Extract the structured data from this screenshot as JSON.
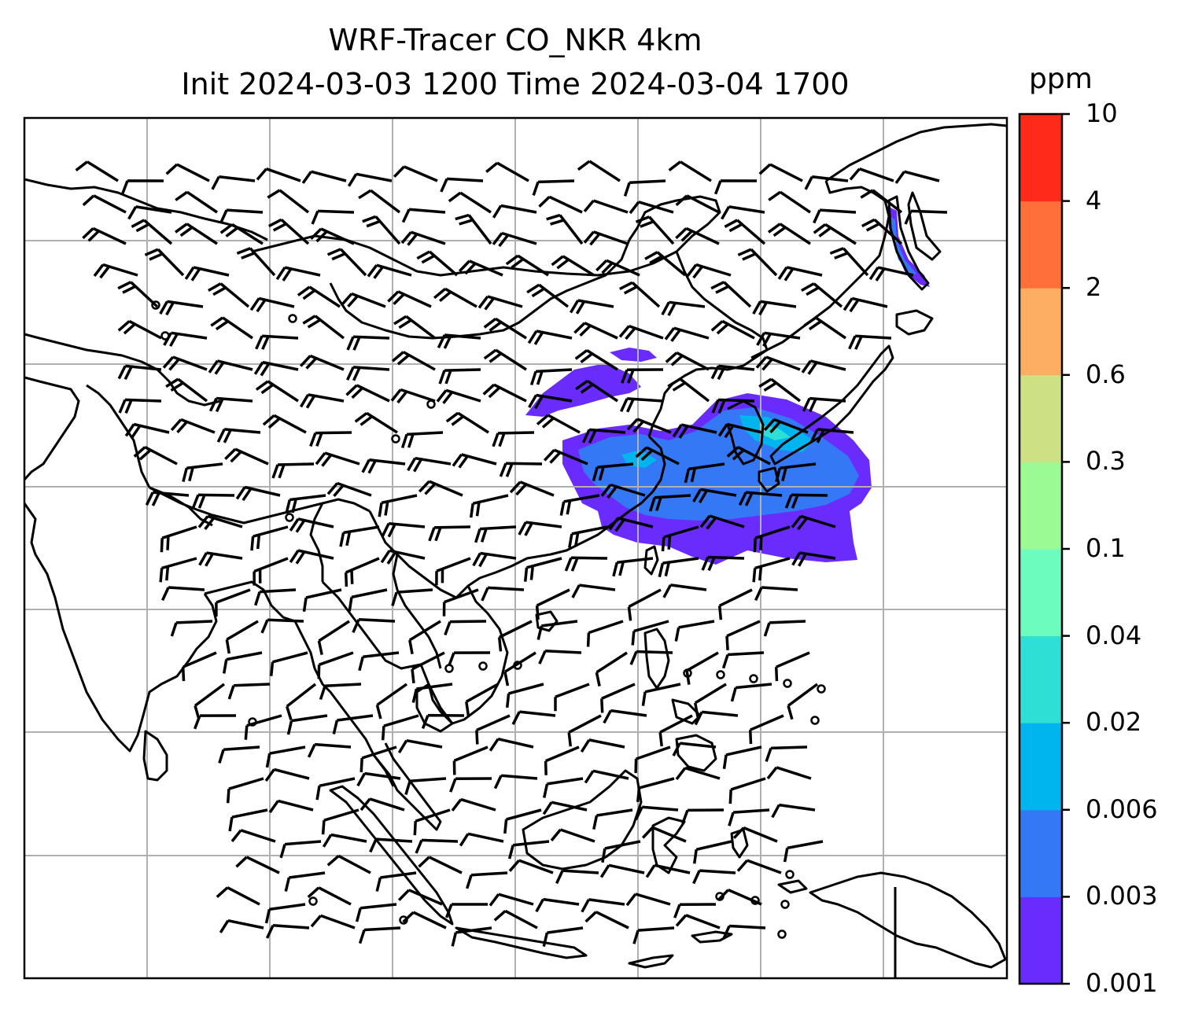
{
  "title": {
    "line1": "WRF-Tracer CO_NKR 4km",
    "line2": "Init 2024-03-03 1200 Time 2024-03-04 1700"
  },
  "colorbar": {
    "unit": "ppm",
    "levels": [
      "0.001",
      "0.003",
      "0.006",
      "0.02",
      "0.04",
      "0.1",
      "0.3",
      "0.6",
      "2",
      "4",
      "10"
    ],
    "colors": [
      "#6a2cfc",
      "#3478f5",
      "#00b4ee",
      "#2edfd6",
      "#6cfcbd",
      "#9cfa95",
      "#cde184",
      "#fdae63",
      "#ff6f3a",
      "#ff2a19"
    ]
  },
  "map": {
    "coastline_color": "#000000",
    "gridline_color": "#b0b0b0",
    "background": "#ffffff"
  }
}
